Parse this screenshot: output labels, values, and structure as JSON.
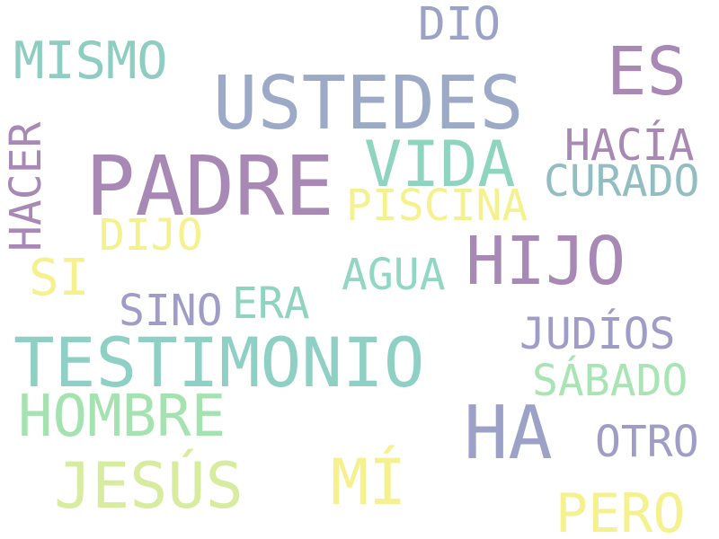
{
  "words": {
    "dio": {
      "text": "DIO",
      "color": "#9ca1c8"
    },
    "mismo": {
      "text": "MISMO",
      "color": "#8ecdc1"
    },
    "es": {
      "text": "ES",
      "color": "#a888b4"
    },
    "ustedes": {
      "text": "USTEDES",
      "color": "#9caac8"
    },
    "hacia": {
      "text": "HACÍA",
      "color": "#a888b4"
    },
    "vida": {
      "text": "VIDA",
      "color": "#8ed4bf"
    },
    "curado": {
      "text": "CURADO",
      "color": "#92bdc3"
    },
    "padre": {
      "text": "PADRE",
      "color": "#a888b4"
    },
    "hacer": {
      "text": "HACER",
      "color": "#a888b4"
    },
    "piscina": {
      "text": "PISCINA",
      "color": "#f5f18e"
    },
    "dijo": {
      "text": "DIJO",
      "color": "#f5f18e"
    },
    "hijo": {
      "text": "HIJO",
      "color": "#a888b4"
    },
    "si": {
      "text": "SI",
      "color": "#f5f18e"
    },
    "agua": {
      "text": "AGUA",
      "color": "#92d6c4"
    },
    "sino": {
      "text": "SINO",
      "color": "#a09cc8"
    },
    "era": {
      "text": "ERA",
      "color": "#8ed4bf"
    },
    "testimonio": {
      "text": "TESTIMONIO",
      "color": "#8ed0c4"
    },
    "judios": {
      "text": "JUDÍOS",
      "color": "#a09cc8"
    },
    "sabado": {
      "text": "SÁBADO",
      "color": "#a8e4b4"
    },
    "hombre": {
      "text": "HOMBRE",
      "color": "#a4e3b0"
    },
    "ha": {
      "text": "HA",
      "color": "#9ca1c8"
    },
    "otro": {
      "text": "OTRO",
      "color": "#a09cc8"
    },
    "jesus": {
      "text": "JESÚS",
      "color": "#d8eca0"
    },
    "mi": {
      "text": "MÍ",
      "color": "#f5f18e"
    },
    "pero": {
      "text": "PERO",
      "color": "#f5f18e"
    }
  }
}
